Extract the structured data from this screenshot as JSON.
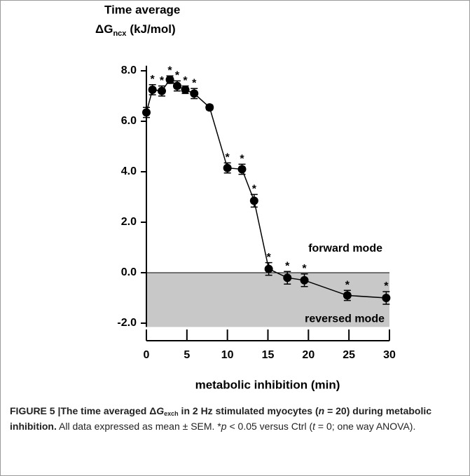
{
  "chart_data": {
    "type": "line",
    "ylabel_line1": "Time average",
    "ylabel_symbol": "ΔG",
    "ylabel_subscript": "ncx",
    "ylabel_unit": "(kJ/mol)",
    "xlabel": "metabolic inhibition (min)",
    "x": [
      0,
      0.75,
      1.9,
      2.9,
      3.8,
      4.8,
      5.9,
      7.8,
      10,
      11.8,
      13.3,
      15.1,
      17.4,
      19.5,
      24.8,
      29.6
    ],
    "values": [
      6.35,
      7.25,
      7.2,
      7.65,
      7.4,
      7.25,
      7.1,
      6.55,
      4.15,
      4.1,
      2.85,
      0.15,
      -0.2,
      -0.3,
      -0.9,
      -1.0
    ],
    "errors": [
      0.2,
      0.2,
      0.2,
      0.15,
      0.2,
      0.15,
      0.2,
      0.1,
      0.2,
      0.2,
      0.25,
      0.25,
      0.25,
      0.25,
      0.2,
      0.25
    ],
    "markers": [
      null,
      "*",
      "*",
      "*",
      "*",
      "*",
      "*",
      null,
      "*",
      "*",
      "*",
      "*",
      "*",
      "*",
      "*",
      "*"
    ],
    "color": "#000000",
    "region_color": "#c8c8c8",
    "region_upper_label": "forward mode",
    "region_lower_label": "reversed mode",
    "xlim": [
      0,
      30
    ],
    "xticks": [
      0,
      5,
      10,
      15,
      20,
      25,
      30
    ],
    "ylim": [
      -2.15,
      8.2
    ],
    "yticks": [
      {
        "value": -2,
        "label": "-2.0"
      },
      {
        "value": 0,
        "label": "0.0"
      },
      {
        "value": 2,
        "label": "2.0"
      },
      {
        "value": 4,
        "label": "4.0"
      },
      {
        "value": 6,
        "label": "6.0"
      },
      {
        "value": 8,
        "label": "8.0"
      }
    ]
  },
  "caption": {
    "segments": [
      {
        "text": "FIGURE 5 |The time averaged ",
        "bold": true
      },
      {
        "text": "Δ",
        "bold": true
      },
      {
        "text": "G",
        "bold": true,
        "italic": true
      },
      {
        "text": "exch",
        "bold": true,
        "sub": true
      },
      {
        "text": " in 2 Hz stimulated myocytes (",
        "bold": true
      },
      {
        "text": "n",
        "bold": true,
        "italic": true
      },
      {
        "text": " = 20) during metabolic inhibition.",
        "bold": true
      },
      {
        "text": " All data expressed as mean ± SEM. *"
      },
      {
        "text": "p",
        "italic": true
      },
      {
        "text": " < 0.05 versus Ctrl ("
      },
      {
        "text": "t",
        "italic": true
      },
      {
        "text": " = 0; one way ANOVA)."
      }
    ]
  }
}
